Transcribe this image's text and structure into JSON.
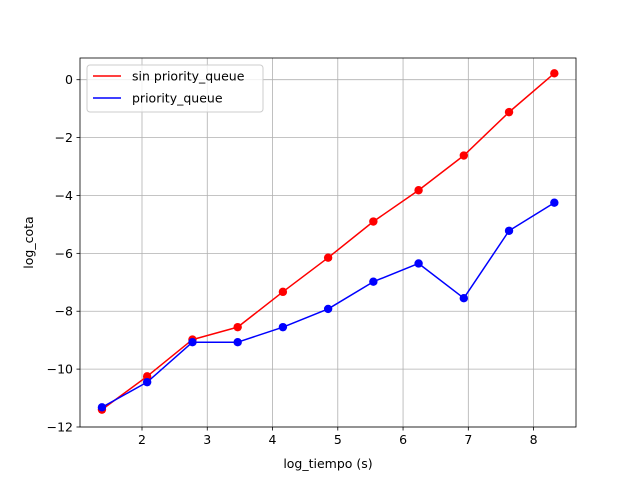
{
  "chart_data": {
    "type": "line",
    "xlabel": "log_tiempo (s)",
    "ylabel": "log_cota",
    "xlim": [
      1.05,
      8.65
    ],
    "ylim": [
      -12,
      0.75
    ],
    "xticks": [
      2,
      3,
      4,
      5,
      6,
      7,
      8
    ],
    "yticks": [
      -12,
      -10,
      -8,
      -6,
      -4,
      -2,
      0
    ],
    "ytick_labels": [
      "−12",
      "−10",
      "−8",
      "−6",
      "−4",
      "−2",
      "0"
    ],
    "grid": true,
    "legend_position": "upper-left",
    "x": [
      1.386,
      2.079,
      2.773,
      3.466,
      4.159,
      4.852,
      5.545,
      6.238,
      6.931,
      7.624,
      8.318
    ],
    "series": [
      {
        "name": "sin priority_queue",
        "color": "#ff0000",
        "marker": "circle",
        "values": [
          -11.4,
          -10.25,
          -8.98,
          -8.55,
          -7.33,
          -6.15,
          -4.9,
          -3.82,
          -2.62,
          -1.12,
          0.22
        ]
      },
      {
        "name": "priority_queue",
        "color": "#0000ff",
        "marker": "circle",
        "values": [
          -11.32,
          -10.45,
          -9.07,
          -9.07,
          -8.55,
          -7.92,
          -6.98,
          -6.35,
          -7.55,
          -5.22,
          -4.25
        ]
      }
    ]
  }
}
